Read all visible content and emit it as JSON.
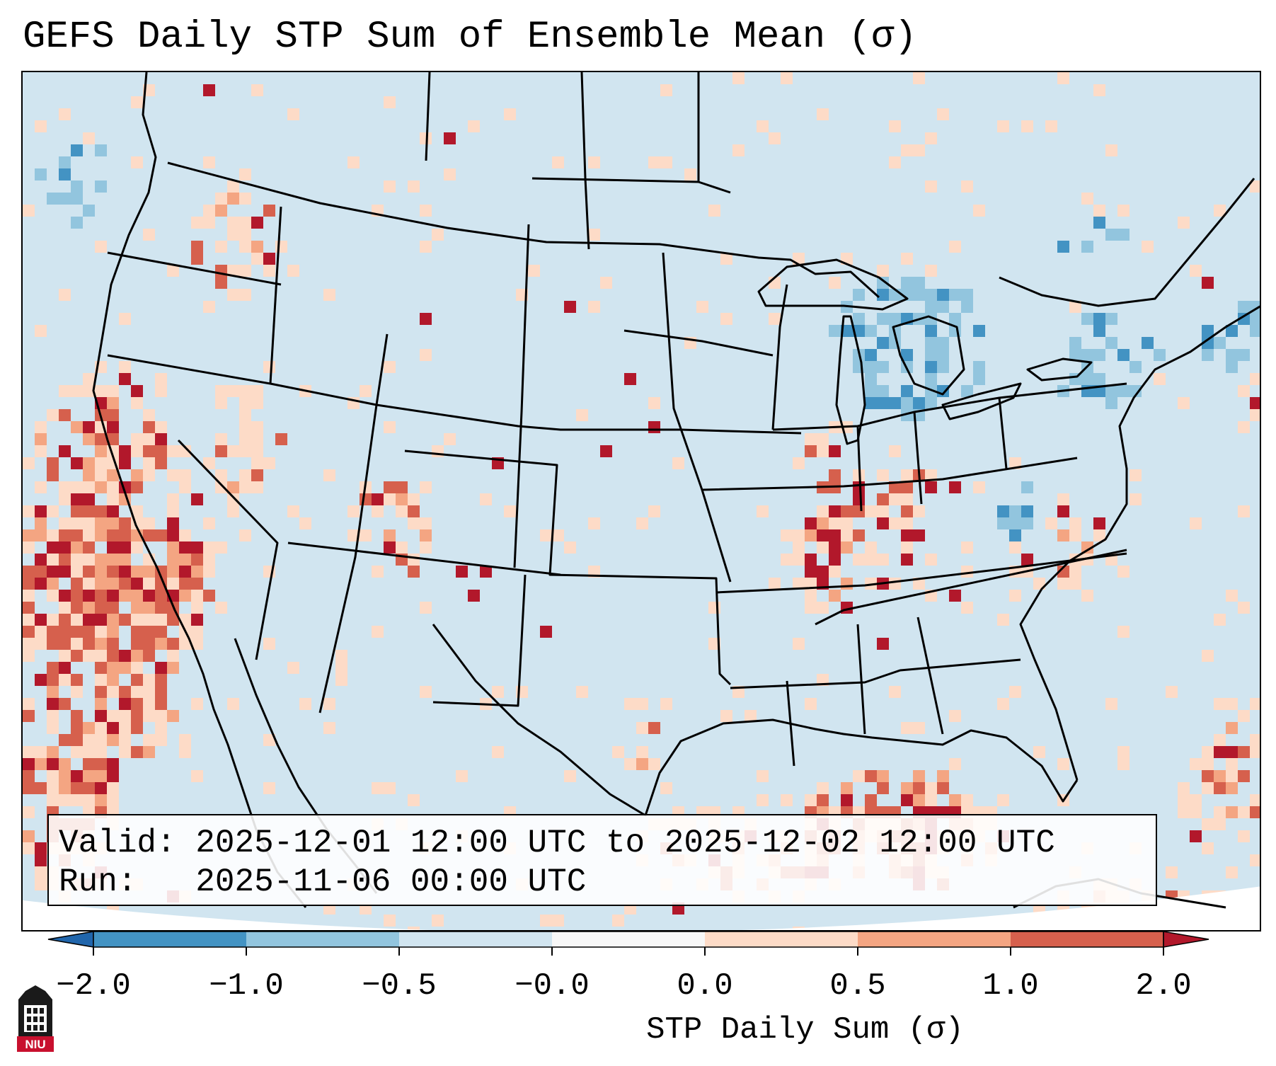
{
  "title": "GEFS Daily STP Sum of Ensemble Mean (σ)",
  "info": {
    "valid_label": "Valid:",
    "valid_value": "2025-12-01 12:00 UTC to 2025-12-02 12:00 UTC",
    "run_label": "Run:",
    "run_value": "2025-11-06 00:00 UTC"
  },
  "colorbar": {
    "label": "STP Daily Sum (σ)",
    "tick_labels": [
      "−2.0",
      "−1.0",
      "−0.5",
      "−0.0",
      "0.0",
      "0.5",
      "1.0",
      "2.0"
    ],
    "bin_colors": [
      "#2166ac",
      "#4393c3",
      "#92c5de",
      "#d1e5f0",
      "#f7f7f7",
      "#fddbc7",
      "#f4a582",
      "#d6604d",
      "#b2182b"
    ],
    "extend": "both"
  },
  "map": {
    "projection": "Lambert Conformal (CONUS)",
    "background_color": "#d1e5f0",
    "boundary_color": "#000000",
    "field": "STP daily sum anomaly (σ), ensemble mean",
    "regions_of_note": [
      {
        "region": "Pacific coast / California offshore",
        "category": "0.5 to 2.0"
      },
      {
        "region": "Gulf of Mexico",
        "category": "0.5 to 1.0"
      },
      {
        "region": "Great Lakes / Northeast",
        "category": "-0.5 to -1.0"
      },
      {
        "region": "Mid-Mississippi & Ohio Valley",
        "category": "0.0 to 2.0"
      }
    ]
  },
  "logo": {
    "text": "NIU",
    "icon": "niu-tower-icon"
  }
}
